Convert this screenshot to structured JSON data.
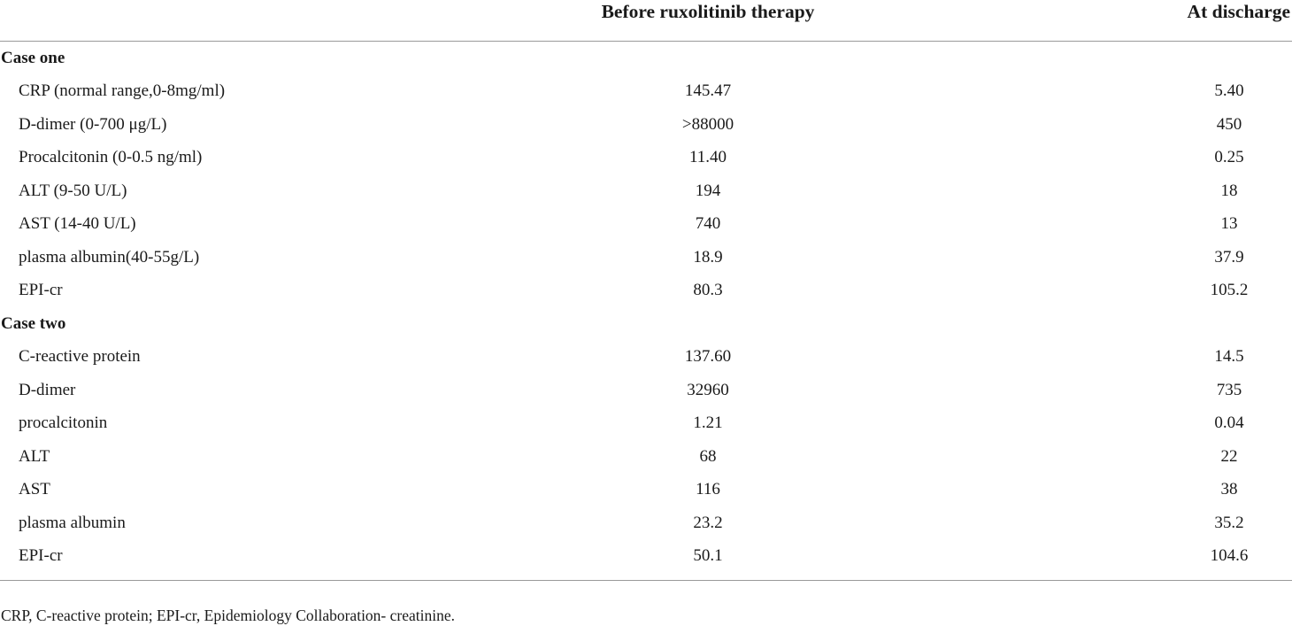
{
  "table": {
    "headers": [
      "",
      "Before ruxolitinib therapy",
      "At discharge"
    ],
    "sections": [
      {
        "label": "Case one",
        "rows": [
          [
            "CRP (normal range,0-8mg/ml)",
            "145.47",
            "5.40"
          ],
          [
            "D-dimer (0-700 μg/L)",
            ">88000",
            "450"
          ],
          [
            "Procalcitonin (0-0.5 ng/ml)",
            "11.40",
            "0.25"
          ],
          [
            "ALT (9-50 U/L)",
            "194",
            "18"
          ],
          [
            "AST (14-40 U/L)",
            "740",
            "13"
          ],
          [
            "plasma albumin(40-55g/L)",
            "18.9",
            "37.9"
          ],
          [
            "EPI-cr",
            "80.3",
            "105.2"
          ]
        ]
      },
      {
        "label": "Case two",
        "rows": [
          [
            "C-reactive protein",
            "137.60",
            "14.5"
          ],
          [
            "D-dimer",
            "32960",
            "735"
          ],
          [
            "procalcitonin",
            "1.21",
            "0.04"
          ],
          [
            "ALT",
            "68",
            "22"
          ],
          [
            "AST",
            "116",
            "38"
          ],
          [
            "plasma albumin",
            "23.2",
            "35.2"
          ],
          [
            "EPI-cr",
            "50.1",
            "104.6"
          ]
        ]
      }
    ]
  },
  "footnote": "CRP, C-reactive protein; EPI-cr, Epidemiology Collaboration- creatinine."
}
